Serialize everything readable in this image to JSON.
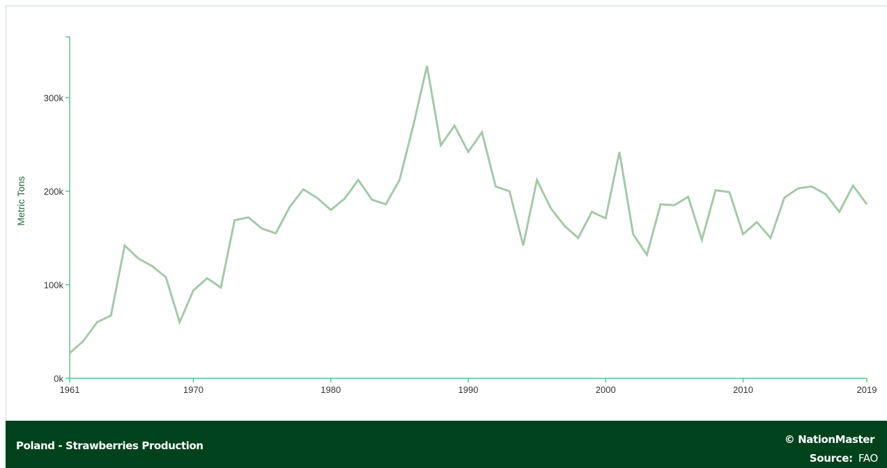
{
  "colors": {
    "line": "#a3c9a8",
    "axis": "#5fbf8a",
    "ylabel": "#1e6b3a",
    "ticktext": "#333333",
    "footer_bg": "#00421c"
  },
  "footer": {
    "title": "Poland - Strawberries Production",
    "brand": "© NationMaster",
    "source_label": "Source:",
    "source_value": "FAO"
  },
  "chart_data": {
    "type": "line",
    "title": "Poland - Strawberries Production",
    "xlabel": "",
    "ylabel": "Metric Tons",
    "xlim": [
      1961,
      2019
    ],
    "ylim": [
      0,
      365000
    ],
    "grid": false,
    "x_ticks": [
      1961,
      1970,
      1980,
      1990,
      2000,
      2010,
      2019
    ],
    "x_tick_labels": [
      "1961",
      "1970",
      "1980",
      "1990",
      "2000",
      "2010",
      "2019"
    ],
    "y_ticks": [
      0,
      100000,
      200000,
      300000
    ],
    "y_tick_labels": [
      "0k",
      "100k",
      "200k",
      "300k"
    ],
    "series": [
      {
        "x": [
          1961,
          1962,
          1963,
          1964,
          1965,
          1966,
          1967,
          1968,
          1969,
          1970,
          1971,
          1972,
          1973,
          1974,
          1975,
          1976,
          1977,
          1978,
          1979,
          1980,
          1981,
          1982,
          1983,
          1984,
          1985,
          1986,
          1987,
          1988,
          1989,
          1990,
          1991,
          1992,
          1993,
          1994,
          1995,
          1996,
          1997,
          1998,
          1999,
          2000,
          2001,
          2002,
          2003,
          2004,
          2005,
          2006,
          2007,
          2008,
          2009,
          2010,
          2011,
          2012,
          2013,
          2014,
          2015,
          2016,
          2017,
          2018,
          2019
        ],
        "values": [
          27000,
          40000,
          60000,
          67000,
          142000,
          128000,
          120000,
          108000,
          60000,
          94000,
          107000,
          97000,
          169000,
          172000,
          160000,
          155000,
          183000,
          202000,
          193000,
          180000,
          192000,
          212000,
          191000,
          186000,
          212000,
          270000,
          334000,
          249000,
          270000,
          242000,
          263000,
          205000,
          200000,
          142000,
          212000,
          182000,
          163000,
          150000,
          178000,
          171000,
          242000,
          154000,
          132000,
          186000,
          185000,
          194000,
          148000,
          201000,
          199000,
          154000,
          167000,
          150000,
          193000,
          203000,
          205000,
          197000,
          178000,
          206000,
          186000
        ]
      }
    ]
  }
}
